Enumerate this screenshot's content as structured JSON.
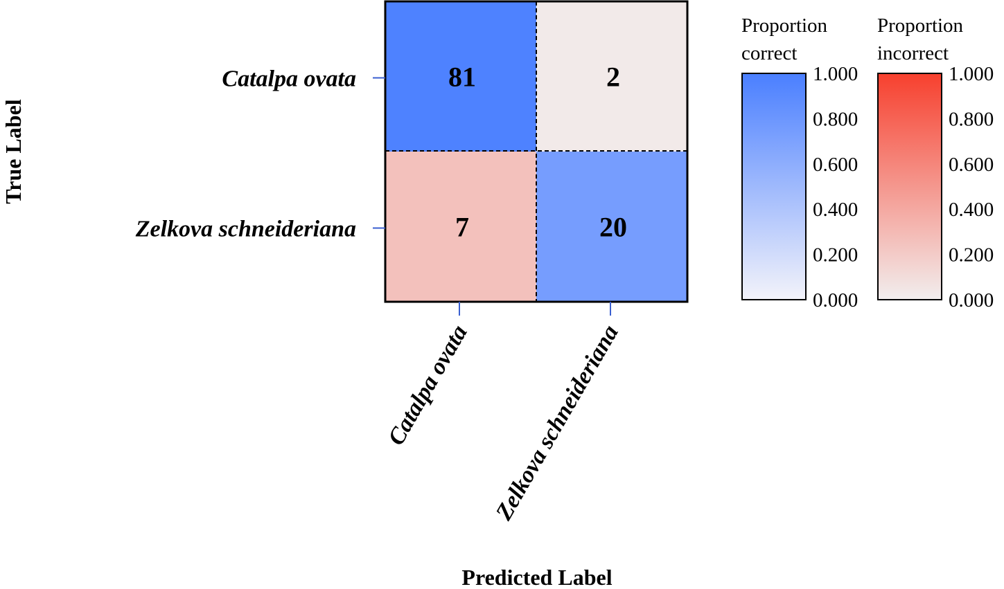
{
  "chart_data": {
    "type": "heatmap",
    "subtype": "confusion-matrix",
    "xlabel": "Predicted Label",
    "ylabel": "True Label",
    "row_labels": [
      "Catalpa ovata",
      "Zelkova schneideriana"
    ],
    "col_labels": [
      "Catalpa ovata",
      "Zelkova schneideriana"
    ],
    "matrix": [
      [
        81,
        2
      ],
      [
        7,
        20
      ]
    ],
    "proportions": [
      [
        0.976,
        0.024
      ],
      [
        0.259,
        0.741
      ]
    ],
    "colorbars": [
      {
        "title_lines": [
          "Proportion",
          "correct"
        ],
        "applies_to": "diagonal",
        "ticks": [
          "1.000",
          "0.800",
          "0.600",
          "0.400",
          "0.200",
          "0.000"
        ],
        "range": [
          0,
          1
        ],
        "color_low": "#f3f3fa",
        "color_high": "#4a7fff"
      },
      {
        "title_lines": [
          "Proportion",
          "incorrect"
        ],
        "applies_to": "off-diagonal",
        "ticks": [
          "1.000",
          "0.800",
          "0.600",
          "0.400",
          "0.200",
          "0.000"
        ],
        "range": [
          0,
          1
        ],
        "color_low": "#f2eeee",
        "color_high": "#f7402e"
      }
    ]
  },
  "colors": {
    "tick_mark": "#3a5fd0",
    "grid_dash": "#000000",
    "border": "#000000"
  }
}
